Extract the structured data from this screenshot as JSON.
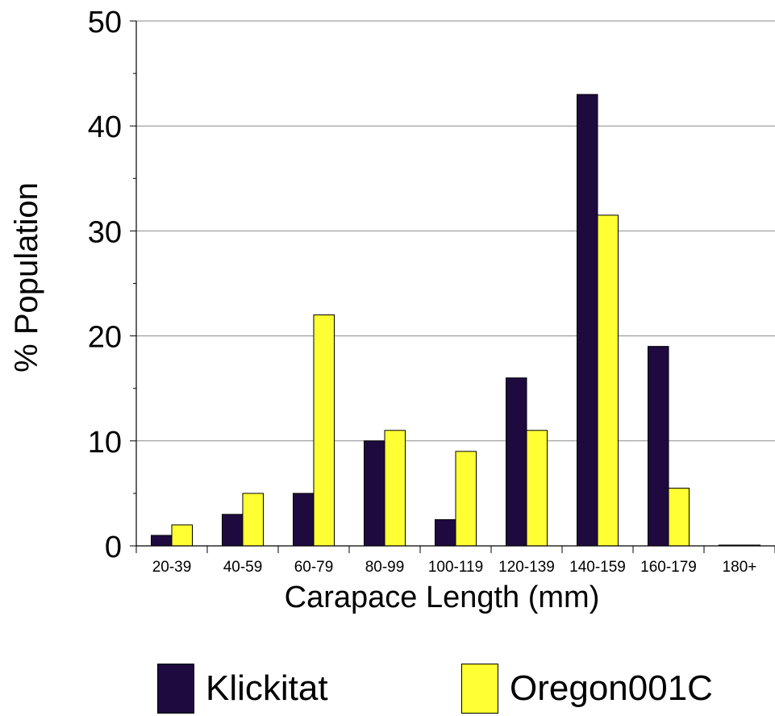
{
  "chart_data": {
    "type": "bar",
    "title": "",
    "xlabel": "Carapace Length (mm)",
    "ylabel": "% Population",
    "categories": [
      "20-39",
      "40-59",
      "60-79",
      "80-99",
      "100-119",
      "120-139",
      "140-159",
      "160-179",
      "180+"
    ],
    "series": [
      {
        "name": "Klickitat",
        "color": "#1f0a40",
        "values": [
          1,
          3,
          5,
          10,
          2.5,
          16,
          43,
          19,
          0
        ]
      },
      {
        "name": "Oregon001C",
        "color": "#ffff33",
        "values": [
          2,
          5,
          22,
          11,
          9,
          11,
          31.5,
          5.5,
          0
        ]
      }
    ],
    "ylim": [
      0,
      50
    ],
    "yticks": [
      "0",
      "10",
      "20",
      "30",
      "40",
      "50"
    ],
    "grid": true,
    "legend_position": "bottom"
  }
}
